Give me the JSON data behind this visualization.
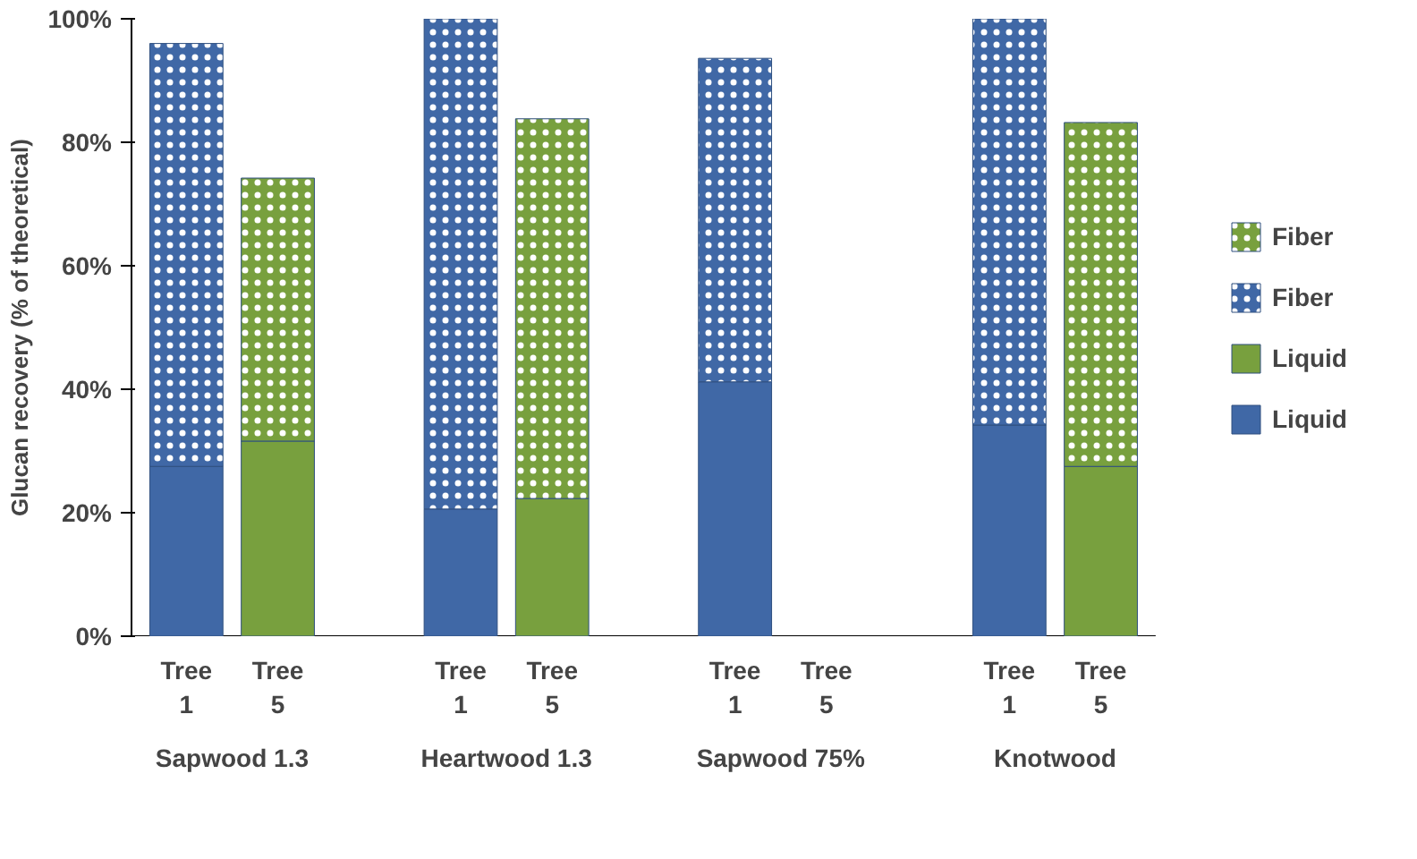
{
  "chart_data": {
    "type": "bar",
    "stacked": true,
    "ylabel": "Glucan recovery (% of theoretical)",
    "categories": [
      "Tree 1",
      "Tree 5",
      null,
      "Tree 1",
      "Tree 5",
      null,
      "Tree 1",
      "Tree 5",
      null,
      "Tree 1",
      "Tree 5"
    ],
    "series": [
      {
        "name": "Liquid",
        "color": "#4068a6",
        "values": [
          27.5,
          null,
          null,
          20.6,
          null,
          null,
          41.2,
          null,
          null,
          34.2,
          null
        ]
      },
      {
        "name": "Liquid",
        "color": "#78a03e",
        "values": [
          null,
          31.6,
          null,
          null,
          22.3,
          null,
          null,
          null,
          null,
          null,
          27.5
        ]
      },
      {
        "name": "Fiber",
        "color": "#4068a6",
        "marker": "circle",
        "values": [
          68.5,
          null,
          null,
          79.4,
          null,
          null,
          52.4,
          null,
          null,
          65.8,
          null
        ]
      },
      {
        "name": "Fiber",
        "color": "#78a03e",
        "marker": "circle",
        "values": [
          null,
          42.6,
          null,
          null,
          61.5,
          null,
          null,
          null,
          null,
          null,
          55.7
        ]
      }
    ],
    "annotations": [
      "Sapwood 1.3",
      "Heartwood 1.3",
      "Sapwood 75%",
      "Knotwood"
    ],
    "ylim": [
      0,
      100
    ],
    "yticks": [
      {
        "value": 0,
        "label": "0%"
      },
      {
        "value": 20,
        "label": "20%"
      },
      {
        "value": 40,
        "label": "40%"
      },
      {
        "value": 60,
        "label": "60%"
      },
      {
        "value": 80,
        "label": "80%"
      },
      {
        "value": 100,
        "label": "100%"
      }
    ],
    "grid": false,
    "legend": "right"
  }
}
